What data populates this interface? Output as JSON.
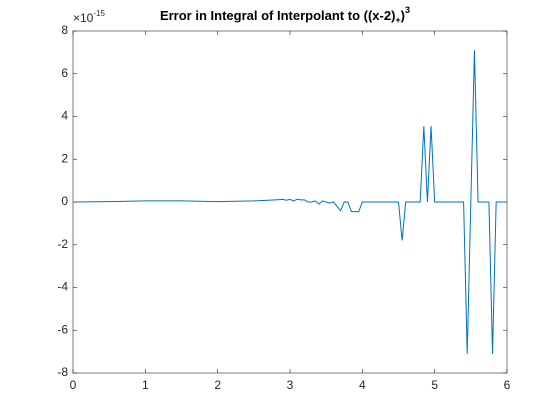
{
  "chart_data": {
    "type": "line",
    "title": "Error in Integral of Interpolant to ((x-2)",
    "title_subscript": "+",
    "title_close": ")",
    "title_superscript": "3",
    "y_scale_label": "×10",
    "y_scale_exponent": "-15",
    "x": [
      0,
      0.5,
      1,
      1.5,
      2,
      2.5,
      2.7,
      2.8,
      2.9,
      2.95,
      3.0,
      3.05,
      3.1,
      3.15,
      3.2,
      3.25,
      3.3,
      3.35,
      3.4,
      3.45,
      3.5,
      3.55,
      3.6,
      3.7,
      3.75,
      3.8,
      3.85,
      3.95,
      4.0,
      4.5,
      4.55,
      4.6,
      4.8,
      4.85,
      4.9,
      4.95,
      5.0,
      5.4,
      5.45,
      5.55,
      5.6,
      5.75,
      5.8,
      5.85,
      6
    ],
    "series": [
      {
        "color": "#0072bd",
        "values": [
          0,
          0.02,
          0.05,
          0.05,
          0.02,
          0.05,
          0.08,
          0.1,
          0.12,
          0.08,
          0.12,
          0.05,
          0.13,
          0.1,
          0.1,
          0,
          0,
          0.05,
          -0.1,
          0.05,
          0,
          -0.05,
          0,
          -0.4,
          0,
          0,
          -0.45,
          -0.45,
          0,
          0,
          -1.8,
          0,
          0,
          3.55,
          0,
          3.55,
          0,
          0,
          -7.1,
          7.1,
          0,
          0,
          -7.1,
          0,
          0
        ]
      }
    ],
    "xlim": [
      0,
      6
    ],
    "xticks": [
      0,
      1,
      2,
      3,
      4,
      5,
      6
    ],
    "ylim": [
      -8,
      8
    ],
    "yticks": [
      -8,
      -6,
      -4,
      -2,
      0,
      2,
      4,
      6,
      8
    ],
    "grid": false
  }
}
